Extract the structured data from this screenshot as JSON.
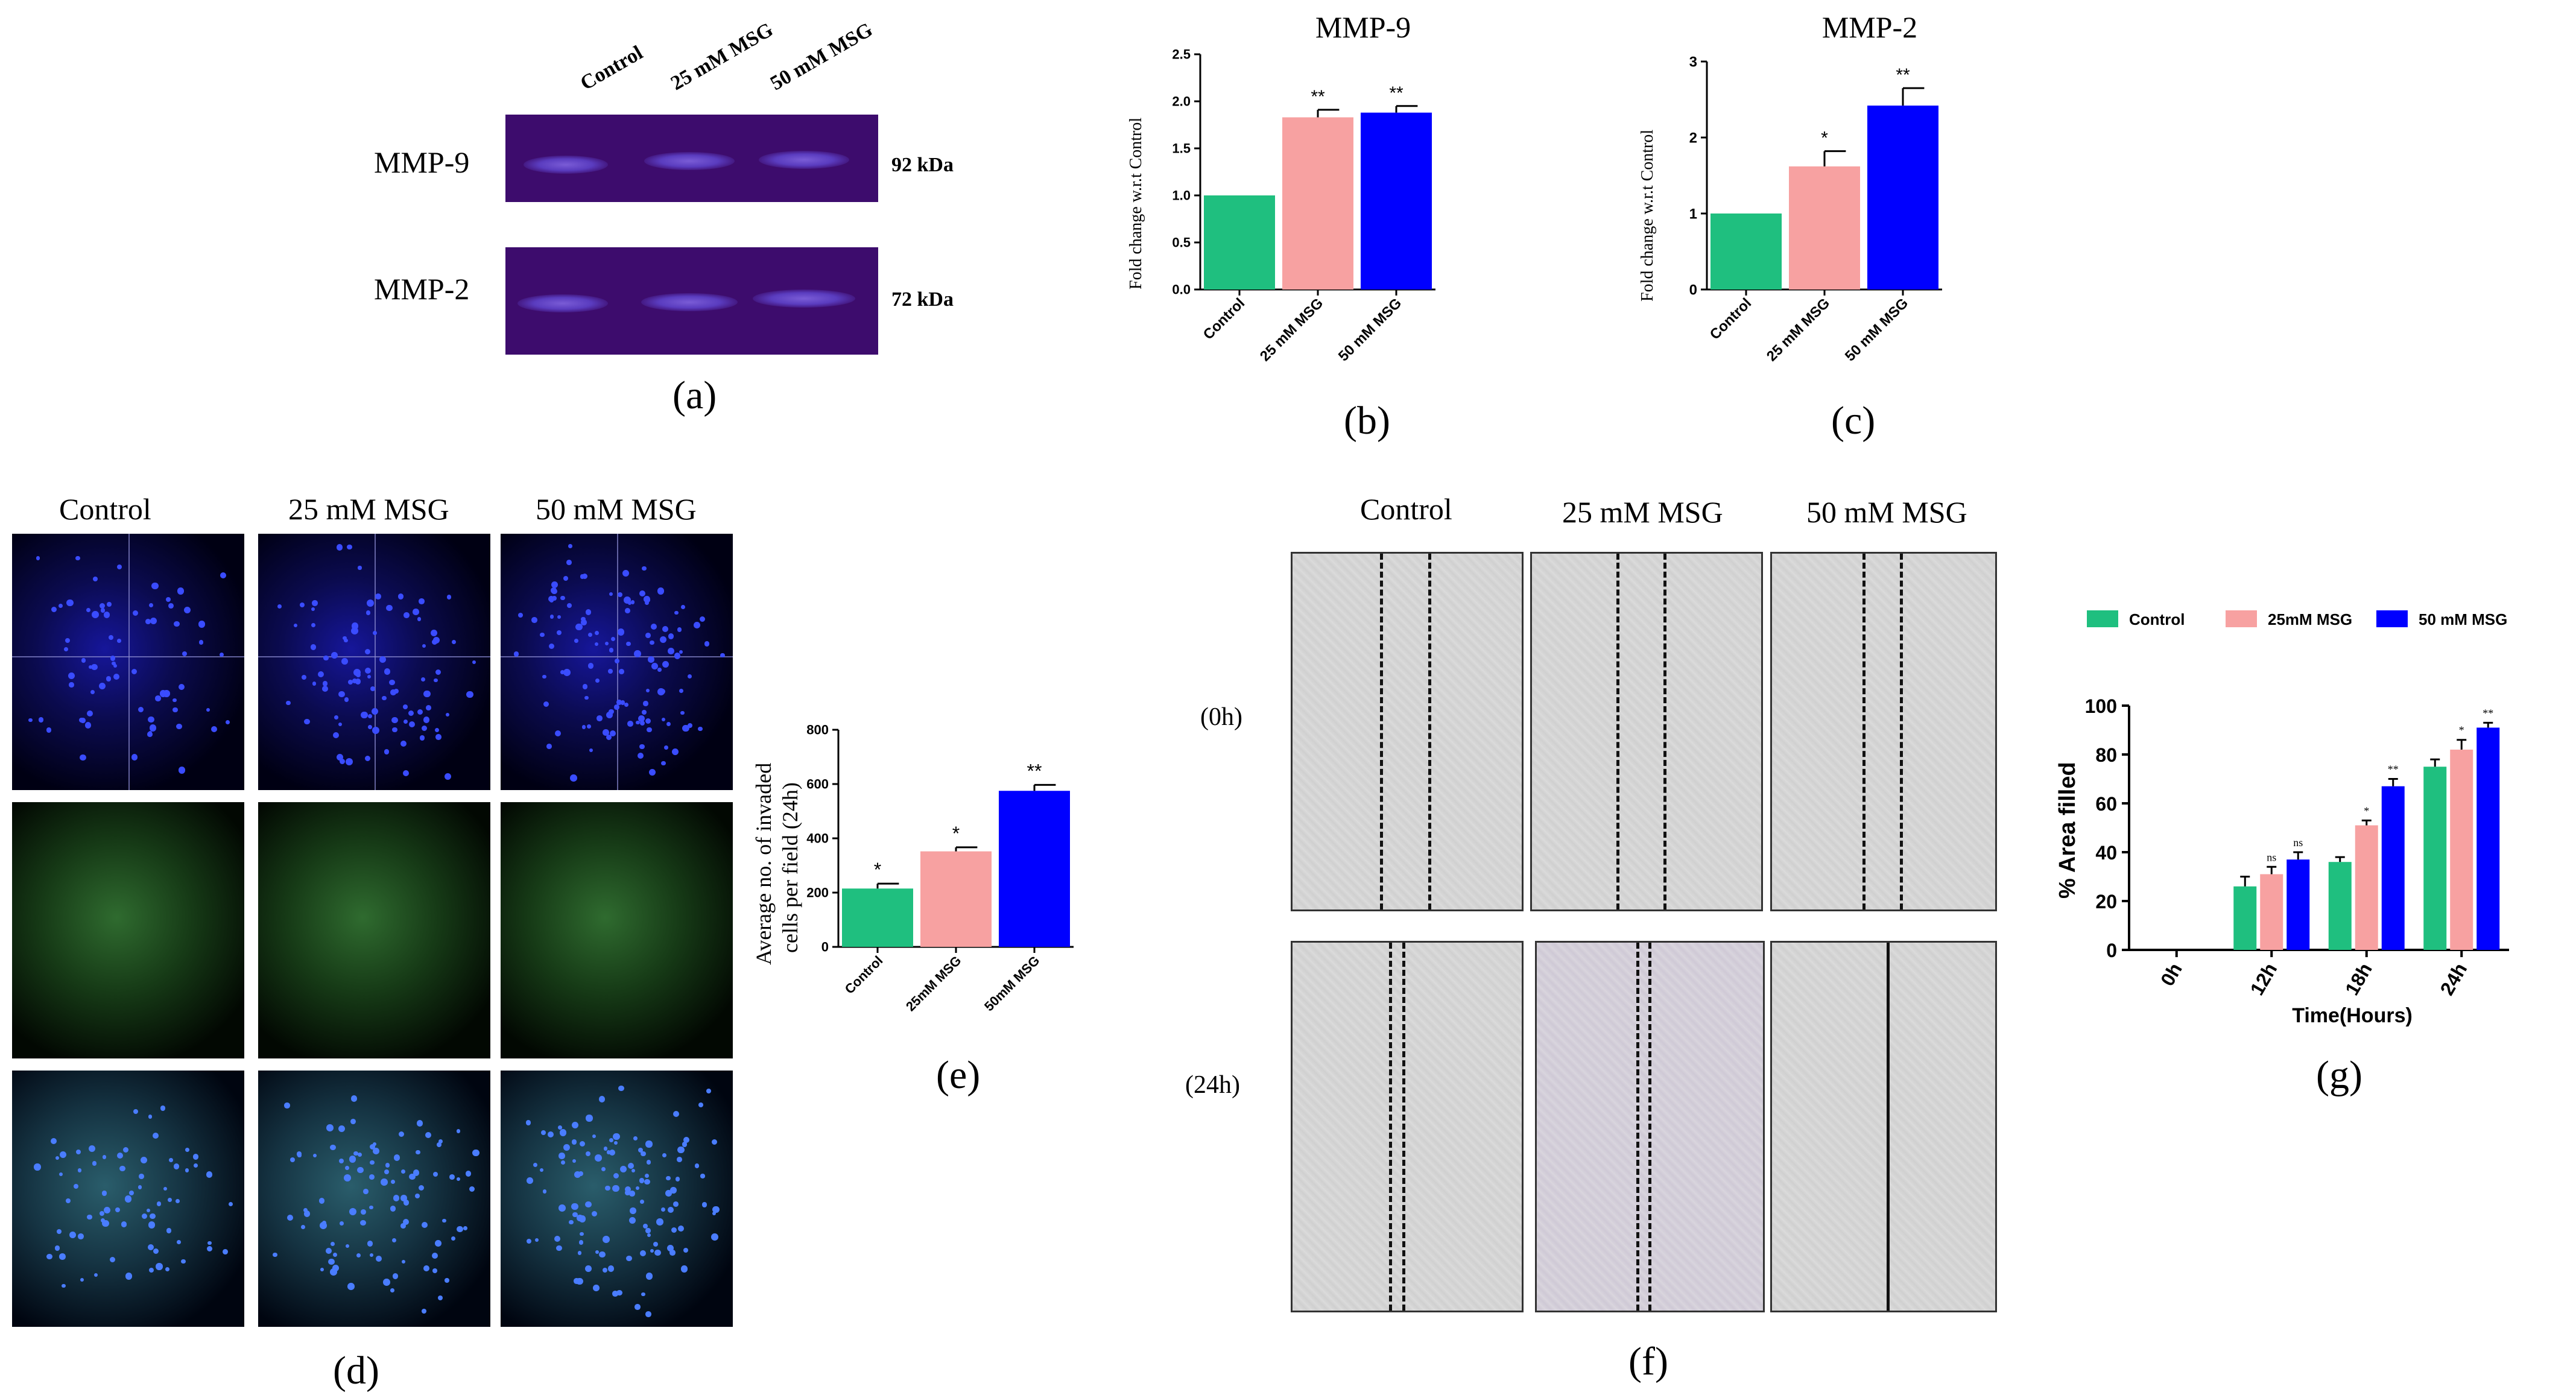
{
  "panel_labels": {
    "a": "(a)",
    "b": "(b)",
    "c": "(c)",
    "d": "(d)",
    "e": "(e)",
    "f": "(f)",
    "g": "(g)"
  },
  "blot": {
    "lanes": [
      "Control",
      "25 mM MSG",
      "50 mM MSG"
    ],
    "rows": [
      {
        "name": "MMP-9",
        "kda": "92 kDa"
      },
      {
        "name": "MMP-2",
        "kda": "72 kDa"
      }
    ]
  },
  "micro": {
    "columns": [
      "Control",
      "25 mM MSG",
      "50 mM MSG"
    ],
    "channels": [
      "blue-nuclei",
      "green-actin",
      "merged"
    ]
  },
  "scratch": {
    "columns": [
      "Control",
      "25 mM MSG",
      "50 mM MSG"
    ],
    "rows": [
      "(0h)",
      "(24h)"
    ]
  },
  "chart_data": [
    {
      "id": "b",
      "type": "bar",
      "title": "MMP-9",
      "ylabel": "Fold change w.r.t Control",
      "categories": [
        "Control",
        "25 mM MSG",
        "50 mM MSG"
      ],
      "values": [
        1.0,
        1.83,
        1.88
      ],
      "errors": [
        0,
        0.08,
        0.07
      ],
      "annotations": [
        "",
        "**",
        "**"
      ],
      "ylim": [
        0,
        2.5
      ],
      "yticks": [
        "0.0",
        "0.5",
        "1.0",
        "1.5",
        "2.0",
        "2.5"
      ],
      "colors": [
        "#1fbf7f",
        "#f7a1a1",
        "#0000ff"
      ]
    },
    {
      "id": "c",
      "type": "bar",
      "title": "MMP-2",
      "ylabel": "Fold change w.r.t Control",
      "categories": [
        "Control",
        "25 mM MSG",
        "50 mM MSG"
      ],
      "values": [
        1.0,
        1.62,
        2.42
      ],
      "errors": [
        0,
        0.2,
        0.23
      ],
      "annotations": [
        "",
        "*",
        "**"
      ],
      "ylim": [
        0,
        3
      ],
      "yticks": [
        "0",
        "1",
        "2",
        "3"
      ],
      "colors": [
        "#1fbf7f",
        "#f7a1a1",
        "#0000ff"
      ]
    },
    {
      "id": "e",
      "type": "bar",
      "title": "",
      "ylabel": "Average no. of invaded cells per field (24h)",
      "categories": [
        "Control",
        "25mM MSG",
        "50mM MSG"
      ],
      "values": [
        215,
        352,
        575
      ],
      "errors": [
        18,
        15,
        22
      ],
      "annotations": [
        "*",
        "*",
        "**"
      ],
      "ylim": [
        0,
        800
      ],
      "yticks": [
        "0",
        "200",
        "400",
        "600",
        "800"
      ],
      "colors": [
        "#1fbf7f",
        "#f7a1a1",
        "#0000ff"
      ]
    },
    {
      "id": "g",
      "type": "bar",
      "title": "",
      "xlabel": "Time(Hours)",
      "ylabel": "% Area filled",
      "categories": [
        "0h",
        "12h",
        "18h",
        "24h"
      ],
      "series": [
        {
          "name": "Control",
          "values": [
            0,
            26,
            36,
            75
          ],
          "errors": [
            0,
            4,
            2,
            3
          ],
          "annotations": [
            "",
            "",
            "",
            ""
          ]
        },
        {
          "name": "25mM MSG",
          "values": [
            0,
            31,
            51,
            82
          ],
          "errors": [
            0,
            3,
            2,
            4
          ],
          "annotations": [
            "",
            "ns",
            "*",
            "*"
          ]
        },
        {
          "name": "50 mM MSG",
          "values": [
            0,
            37,
            67,
            91
          ],
          "errors": [
            0,
            3,
            3,
            2
          ],
          "annotations": [
            "",
            "ns",
            "**",
            "**"
          ]
        }
      ],
      "ylim": [
        0,
        100
      ],
      "yticks": [
        "0",
        "20",
        "40",
        "60",
        "80",
        "100"
      ],
      "colors": [
        "#1fbf7f",
        "#f7a1a1",
        "#0000ff"
      ],
      "legend": "top"
    }
  ]
}
